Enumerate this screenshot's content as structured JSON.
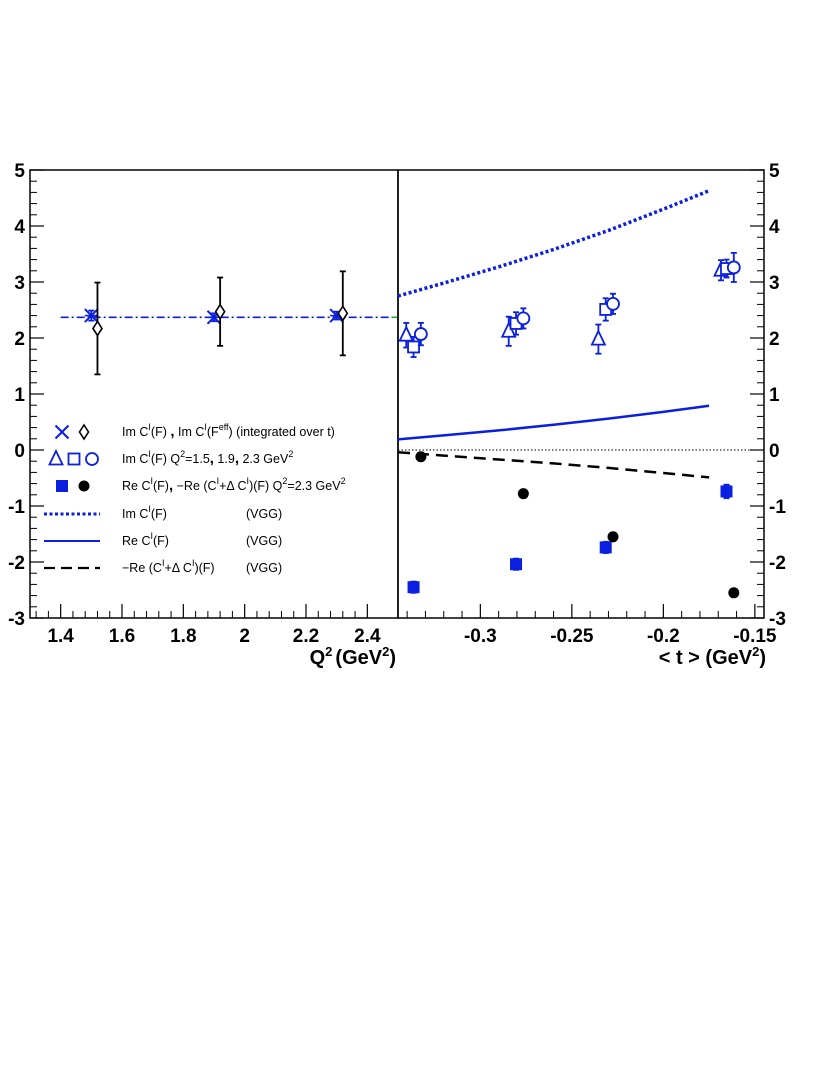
{
  "colors": {
    "blue": "#0a1fe0",
    "black": "#000000",
    "green_dash": "#3aa63a"
  },
  "chart_data": [
    {
      "type": "scatter",
      "panel": "left",
      "xlabel": "Q",
      "xlabel_sup": "2",
      "xlabel_units": "(GeV",
      "xlabel_units_sup": "2",
      "xlabel_close": ")",
      "xlim": [
        1.3,
        2.5
      ],
      "ylim": [
        -3,
        5
      ],
      "xticks": [
        "1.4",
        "1.6",
        "1.8",
        "2",
        "2.2",
        "2.4"
      ],
      "xtick_values": [
        1.4,
        1.6,
        1.8,
        2.0,
        2.2,
        2.4
      ],
      "yticks": [
        "-3",
        "-2",
        "-1",
        "0",
        "1",
        "2",
        "3",
        "4",
        "5"
      ],
      "ytick_values": [
        -3,
        -2,
        -1,
        0,
        1,
        2,
        3,
        4,
        5
      ],
      "reference_line": {
        "style": "dash-dot",
        "color": "blue",
        "y": 2.37,
        "x": [
          1.4,
          2.5
        ]
      },
      "series": [
        {
          "marker": "cross-star",
          "color": "blue",
          "points": [
            {
              "x": 1.5,
              "y": 2.4,
              "err": 0.09
            },
            {
              "x": 1.9,
              "y": 2.37,
              "err": 0.07
            },
            {
              "x": 2.3,
              "y": 2.4,
              "err": 0.07
            }
          ]
        },
        {
          "marker": "open-diamond",
          "color": "black",
          "points": [
            {
              "x": 1.52,
              "y": 2.17,
              "err": 0.82
            },
            {
              "x": 1.92,
              "y": 2.47,
              "err": 0.61
            },
            {
              "x": 2.32,
              "y": 2.44,
              "err": 0.75
            }
          ]
        }
      ]
    },
    {
      "type": "scatter",
      "panel": "right",
      "xlabel": "< t > (GeV",
      "xlabel_sup": "2",
      "xlabel_close": ")",
      "xlim": [
        -0.345,
        -0.145
      ],
      "ylim": [
        -3,
        5
      ],
      "xticks": [
        "-0.3",
        "-0.25",
        "-0.2",
        "-0.15"
      ],
      "xtick_values": [
        -0.3,
        -0.25,
        -0.2,
        -0.15
      ],
      "yticks": [
        "-3",
        "-2",
        "-1",
        "0",
        "1",
        "2",
        "3",
        "4",
        "5"
      ],
      "ytick_values": [
        -3,
        -2,
        -1,
        0,
        1,
        2,
        3,
        4,
        5
      ],
      "zero_line": true,
      "curves": [
        {
          "style": "dotted",
          "color": "blue",
          "x": [
            -0.345,
            -0.32,
            -0.29,
            -0.26,
            -0.23,
            -0.2,
            -0.175
          ],
          "y": [
            2.75,
            2.98,
            3.27,
            3.58,
            3.92,
            4.3,
            4.63
          ]
        },
        {
          "style": "solid",
          "color": "blue",
          "x": [
            -0.345,
            -0.32,
            -0.29,
            -0.26,
            -0.23,
            -0.2,
            -0.175
          ],
          "y": [
            0.19,
            0.26,
            0.35,
            0.45,
            0.56,
            0.68,
            0.79
          ]
        },
        {
          "style": "dashed",
          "color": "black",
          "x": [
            -0.345,
            -0.32,
            -0.29,
            -0.26,
            -0.23,
            -0.2,
            -0.175
          ],
          "y": [
            -0.04,
            -0.1,
            -0.17,
            -0.24,
            -0.32,
            -0.41,
            -0.49
          ]
        }
      ],
      "series": [
        {
          "marker": "open-triangle",
          "color": "blue",
          "points": [
            {
              "x": -0.3405,
              "y": 2.05,
              "err": 0.22
            },
            {
              "x": -0.2845,
              "y": 2.12,
              "err": 0.26
            },
            {
              "x": -0.2355,
              "y": 1.98,
              "err": 0.26
            },
            {
              "x": -0.1685,
              "y": 3.21,
              "err": 0.18
            }
          ]
        },
        {
          "marker": "open-square",
          "color": "blue",
          "points": [
            {
              "x": -0.3365,
              "y": 1.84,
              "err": 0.18
            },
            {
              "x": -0.2805,
              "y": 2.26,
              "err": 0.2
            },
            {
              "x": -0.2315,
              "y": 2.51,
              "err": 0.2
            },
            {
              "x": -0.1655,
              "y": 3.24,
              "err": 0.16
            }
          ]
        },
        {
          "marker": "open-circle",
          "color": "blue",
          "points": [
            {
              "x": -0.3325,
              "y": 2.07,
              "err": 0.2
            },
            {
              "x": -0.2765,
              "y": 2.35,
              "err": 0.18
            },
            {
              "x": -0.2275,
              "y": 2.61,
              "err": 0.18
            },
            {
              "x": -0.1615,
              "y": 3.26,
              "err": 0.26
            }
          ]
        },
        {
          "marker": "filled-square",
          "color": "blue",
          "points": [
            {
              "x": -0.3365,
              "y": -2.45,
              "err": 0.1
            },
            {
              "x": -0.2805,
              "y": -2.04,
              "err": 0.1
            },
            {
              "x": -0.2315,
              "y": -1.74,
              "err": 0.1
            },
            {
              "x": -0.1655,
              "y": -0.74,
              "err": 0.12
            }
          ]
        },
        {
          "marker": "filled-circle",
          "color": "black",
          "points": [
            {
              "x": -0.3325,
              "y": -0.12,
              "err": 0.06
            },
            {
              "x": -0.2765,
              "y": -0.78,
              "err": 0.06
            },
            {
              "x": -0.2275,
              "y": -1.55,
              "err": 0.06
            },
            {
              "x": -0.1615,
              "y": -2.55,
              "err": 0.06
            }
          ]
        }
      ]
    }
  ],
  "legend": {
    "rows": [
      {
        "symbols": [
          "cross",
          "open-diamond"
        ],
        "text": "Im C",
        "text_parts": [
          "Im C",
          "I",
          "(F)  ",
          ",",
          "  Im C",
          "I",
          "(F",
          "eff",
          ")   (integrated over t)"
        ]
      },
      {
        "symbols": [
          "open-triangle",
          "open-square",
          "open-circle"
        ],
        "text_parts": [
          "Im C",
          "I",
          "(F)        Q",
          "2",
          "=1.5",
          ",",
          " 1.9",
          ",",
          " 2.3  GeV",
          "2"
        ]
      },
      {
        "symbols": [
          "filled-square",
          "filled-circle"
        ],
        "text_parts": [
          "Re C",
          "I",
          "(F)",
          ",",
          " −Re (C",
          "I",
          "+Δ C",
          "I",
          ")(F)   Q",
          "2",
          "=2.3 GeV",
          "2"
        ]
      },
      {
        "symbols": [
          "dotted-line"
        ],
        "text_parts": [
          "Im C",
          "I",
          "(F)"
        ],
        "tag": "(VGG)"
      },
      {
        "symbols": [
          "solid-line"
        ],
        "text_parts": [
          "Re C",
          "I",
          "(F)"
        ],
        "tag": "(VGG)"
      },
      {
        "symbols": [
          "dashed-line"
        ],
        "text_parts": [
          "−Re (C",
          "I",
          "+Δ C",
          "I",
          ")(F)"
        ],
        "tag": "(VGG)"
      }
    ]
  }
}
